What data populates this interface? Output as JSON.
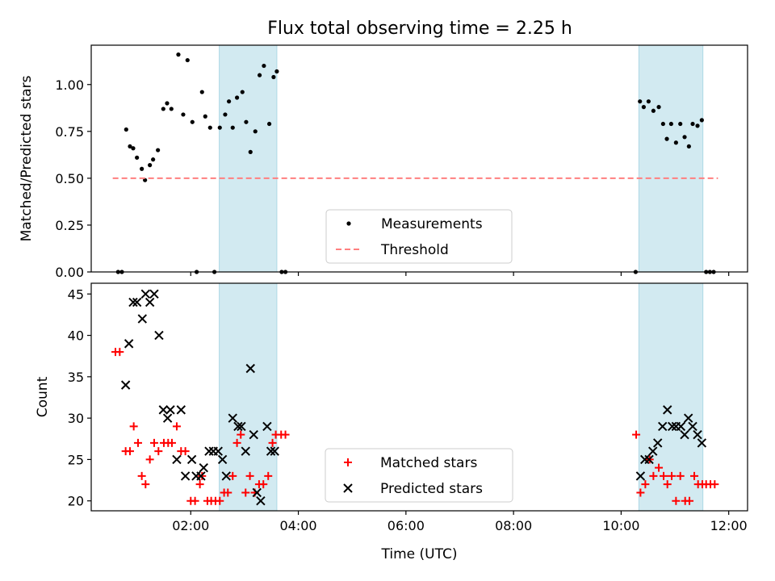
{
  "chart_data": [
    {
      "type": "scatter",
      "title": "Flux total observing time = 2.25 h",
      "xlabel": "",
      "ylabel": "Matched/Predicted stars",
      "x_unit": "UTC hours (decimal)",
      "xlim": [
        0.15,
        12.35
      ],
      "ylim": [
        0.0,
        1.21
      ],
      "yticks": [
        0.0,
        0.25,
        0.5,
        0.75,
        1.0
      ],
      "ytick_labels": [
        "0.00",
        "0.25",
        "0.50",
        "0.75",
        "1.00"
      ],
      "xticks": [
        2,
        4,
        6,
        8,
        10,
        12
      ],
      "xtick_labels": [
        "",
        "",
        "",
        "",
        "",
        ""
      ],
      "shaded_regions": [
        [
          2.53,
          3.6
        ],
        [
          10.33,
          11.52
        ]
      ],
      "shade_color": "#add8e6",
      "legend": {
        "position": "lower center",
        "entries": [
          "Measurements",
          "Threshold"
        ]
      },
      "series": [
        {
          "name": "Measurements",
          "marker": "dot",
          "color": "#000000",
          "points": [
            [
              0.65,
              0.0
            ],
            [
              0.72,
              0.0
            ],
            [
              0.8,
              0.76
            ],
            [
              0.87,
              0.67
            ],
            [
              0.93,
              0.66
            ],
            [
              1.0,
              0.61
            ],
            [
              1.09,
              0.55
            ],
            [
              1.15,
              0.49
            ],
            [
              1.24,
              0.57
            ],
            [
              1.3,
              0.6
            ],
            [
              1.39,
              0.65
            ],
            [
              1.49,
              0.87
            ],
            [
              1.56,
              0.9
            ],
            [
              1.64,
              0.87
            ],
            [
              1.77,
              1.16
            ],
            [
              1.86,
              0.84
            ],
            [
              1.94,
              1.13
            ],
            [
              2.03,
              0.8
            ],
            [
              2.11,
              0.0
            ],
            [
              2.21,
              0.96
            ],
            [
              2.27,
              0.83
            ],
            [
              2.36,
              0.77
            ],
            [
              2.44,
              0.0
            ],
            [
              2.54,
              0.77
            ],
            [
              2.64,
              0.84
            ],
            [
              2.71,
              0.91
            ],
            [
              2.78,
              0.77
            ],
            [
              2.86,
              0.93
            ],
            [
              2.96,
              0.96
            ],
            [
              3.03,
              0.8
            ],
            [
              3.11,
              0.64
            ],
            [
              3.2,
              0.75
            ],
            [
              3.28,
              1.05
            ],
            [
              3.36,
              1.1
            ],
            [
              3.46,
              0.79
            ],
            [
              3.54,
              1.04
            ],
            [
              3.6,
              1.07
            ],
            [
              3.69,
              0.0
            ],
            [
              3.76,
              0.0
            ],
            [
              10.27,
              0.0
            ],
            [
              10.35,
              0.91
            ],
            [
              10.42,
              0.88
            ],
            [
              10.51,
              0.91
            ],
            [
              10.6,
              0.86
            ],
            [
              10.7,
              0.88
            ],
            [
              10.78,
              0.79
            ],
            [
              10.85,
              0.71
            ],
            [
              10.93,
              0.79
            ],
            [
              11.02,
              0.69
            ],
            [
              11.1,
              0.79
            ],
            [
              11.18,
              0.72
            ],
            [
              11.26,
              0.67
            ],
            [
              11.33,
              0.79
            ],
            [
              11.42,
              0.78
            ],
            [
              11.5,
              0.81
            ],
            [
              11.58,
              0.0
            ],
            [
              11.65,
              0.0
            ],
            [
              11.72,
              0.0
            ]
          ]
        },
        {
          "name": "Threshold",
          "line": "dashed",
          "color": "#ff7f7f",
          "points": [
            [
              0.55,
              0.5
            ],
            [
              11.8,
              0.5
            ]
          ]
        }
      ]
    },
    {
      "type": "scatter",
      "title": "",
      "xlabel": "Time (UTC)",
      "ylabel": "Count",
      "x_unit": "UTC hours (decimal)",
      "xlim": [
        0.15,
        12.35
      ],
      "ylim": [
        18.8,
        46.3
      ],
      "yticks": [
        20,
        25,
        30,
        35,
        40,
        45
      ],
      "ytick_labels": [
        "20",
        "25",
        "30",
        "35",
        "40",
        "45"
      ],
      "xticks": [
        2,
        4,
        6,
        8,
        10,
        12
      ],
      "xtick_labels": [
        "02:00",
        "04:00",
        "06:00",
        "08:00",
        "10:00",
        "12:00"
      ],
      "shaded_regions": [
        [
          2.53,
          3.6
        ],
        [
          10.33,
          11.52
        ]
      ],
      "shade_color": "#add8e6",
      "legend": {
        "position": "lower center",
        "entries": [
          "Matched stars",
          "Predicted stars"
        ]
      },
      "series": [
        {
          "name": "Matched stars",
          "marker": "plus",
          "color": "#ff0000",
          "points": [
            [
              0.6,
              38
            ],
            [
              0.68,
              38
            ],
            [
              0.79,
              26
            ],
            [
              0.87,
              26
            ],
            [
              0.94,
              29
            ],
            [
              1.02,
              27
            ],
            [
              1.09,
              23
            ],
            [
              1.16,
              22
            ],
            [
              1.24,
              25
            ],
            [
              1.32,
              27
            ],
            [
              1.4,
              26
            ],
            [
              1.5,
              27
            ],
            [
              1.58,
              27
            ],
            [
              1.65,
              27
            ],
            [
              1.74,
              29
            ],
            [
              1.82,
              26
            ],
            [
              1.9,
              26
            ],
            [
              2.0,
              20
            ],
            [
              2.08,
              20
            ],
            [
              2.17,
              22
            ],
            [
              2.21,
              23
            ],
            [
              2.31,
              20
            ],
            [
              2.38,
              20
            ],
            [
              2.46,
              20
            ],
            [
              2.54,
              20
            ],
            [
              2.62,
              21
            ],
            [
              2.69,
              21
            ],
            [
              2.78,
              23
            ],
            [
              2.86,
              27
            ],
            [
              2.93,
              28
            ],
            [
              3.02,
              21
            ],
            [
              3.1,
              23
            ],
            [
              3.19,
              21
            ],
            [
              3.27,
              22
            ],
            [
              3.35,
              22
            ],
            [
              3.44,
              23
            ],
            [
              3.52,
              27
            ],
            [
              3.58,
              28
            ],
            [
              3.68,
              28
            ],
            [
              3.76,
              28
            ],
            [
              10.28,
              28
            ],
            [
              10.36,
              21
            ],
            [
              10.45,
              22
            ],
            [
              10.53,
              25
            ],
            [
              10.6,
              23
            ],
            [
              10.7,
              24
            ],
            [
              10.79,
              23
            ],
            [
              10.86,
              22
            ],
            [
              10.94,
              23
            ],
            [
              11.02,
              20
            ],
            [
              11.1,
              23
            ],
            [
              11.19,
              20
            ],
            [
              11.27,
              20
            ],
            [
              11.36,
              23
            ],
            [
              11.43,
              22
            ],
            [
              11.51,
              22
            ],
            [
              11.58,
              22
            ],
            [
              11.66,
              22
            ],
            [
              11.74,
              22
            ]
          ]
        },
        {
          "name": "Predicted stars",
          "marker": "x",
          "color": "#000000",
          "points": [
            [
              0.79,
              34
            ],
            [
              0.85,
              39
            ],
            [
              0.93,
              44
            ],
            [
              1.0,
              44
            ],
            [
              1.1,
              42
            ],
            [
              1.16,
              45
            ],
            [
              1.24,
              44
            ],
            [
              1.32,
              45
            ],
            [
              1.41,
              40
            ],
            [
              1.49,
              31
            ],
            [
              1.57,
              30
            ],
            [
              1.62,
              31
            ],
            [
              1.74,
              25
            ],
            [
              1.82,
              31
            ],
            [
              1.9,
              23
            ],
            [
              2.02,
              25
            ],
            [
              2.1,
              23
            ],
            [
              2.19,
              23
            ],
            [
              2.24,
              24
            ],
            [
              2.34,
              26
            ],
            [
              2.42,
              26
            ],
            [
              2.51,
              26
            ],
            [
              2.59,
              25
            ],
            [
              2.66,
              23
            ],
            [
              2.78,
              30
            ],
            [
              2.88,
              29
            ],
            [
              2.94,
              29
            ],
            [
              3.02,
              26
            ],
            [
              3.11,
              36
            ],
            [
              3.17,
              28
            ],
            [
              3.23,
              21
            ],
            [
              3.3,
              20
            ],
            [
              3.42,
              29
            ],
            [
              3.49,
              26
            ],
            [
              3.56,
              26
            ],
            [
              10.36,
              23
            ],
            [
              10.44,
              25
            ],
            [
              10.52,
              25
            ],
            [
              10.59,
              26
            ],
            [
              10.68,
              27
            ],
            [
              10.77,
              29
            ],
            [
              10.86,
              31
            ],
            [
              10.95,
              29
            ],
            [
              11.02,
              29
            ],
            [
              11.11,
              29
            ],
            [
              11.18,
              28
            ],
            [
              11.25,
              30
            ],
            [
              11.33,
              29
            ],
            [
              11.42,
              28
            ],
            [
              11.5,
              27
            ]
          ]
        }
      ]
    }
  ]
}
